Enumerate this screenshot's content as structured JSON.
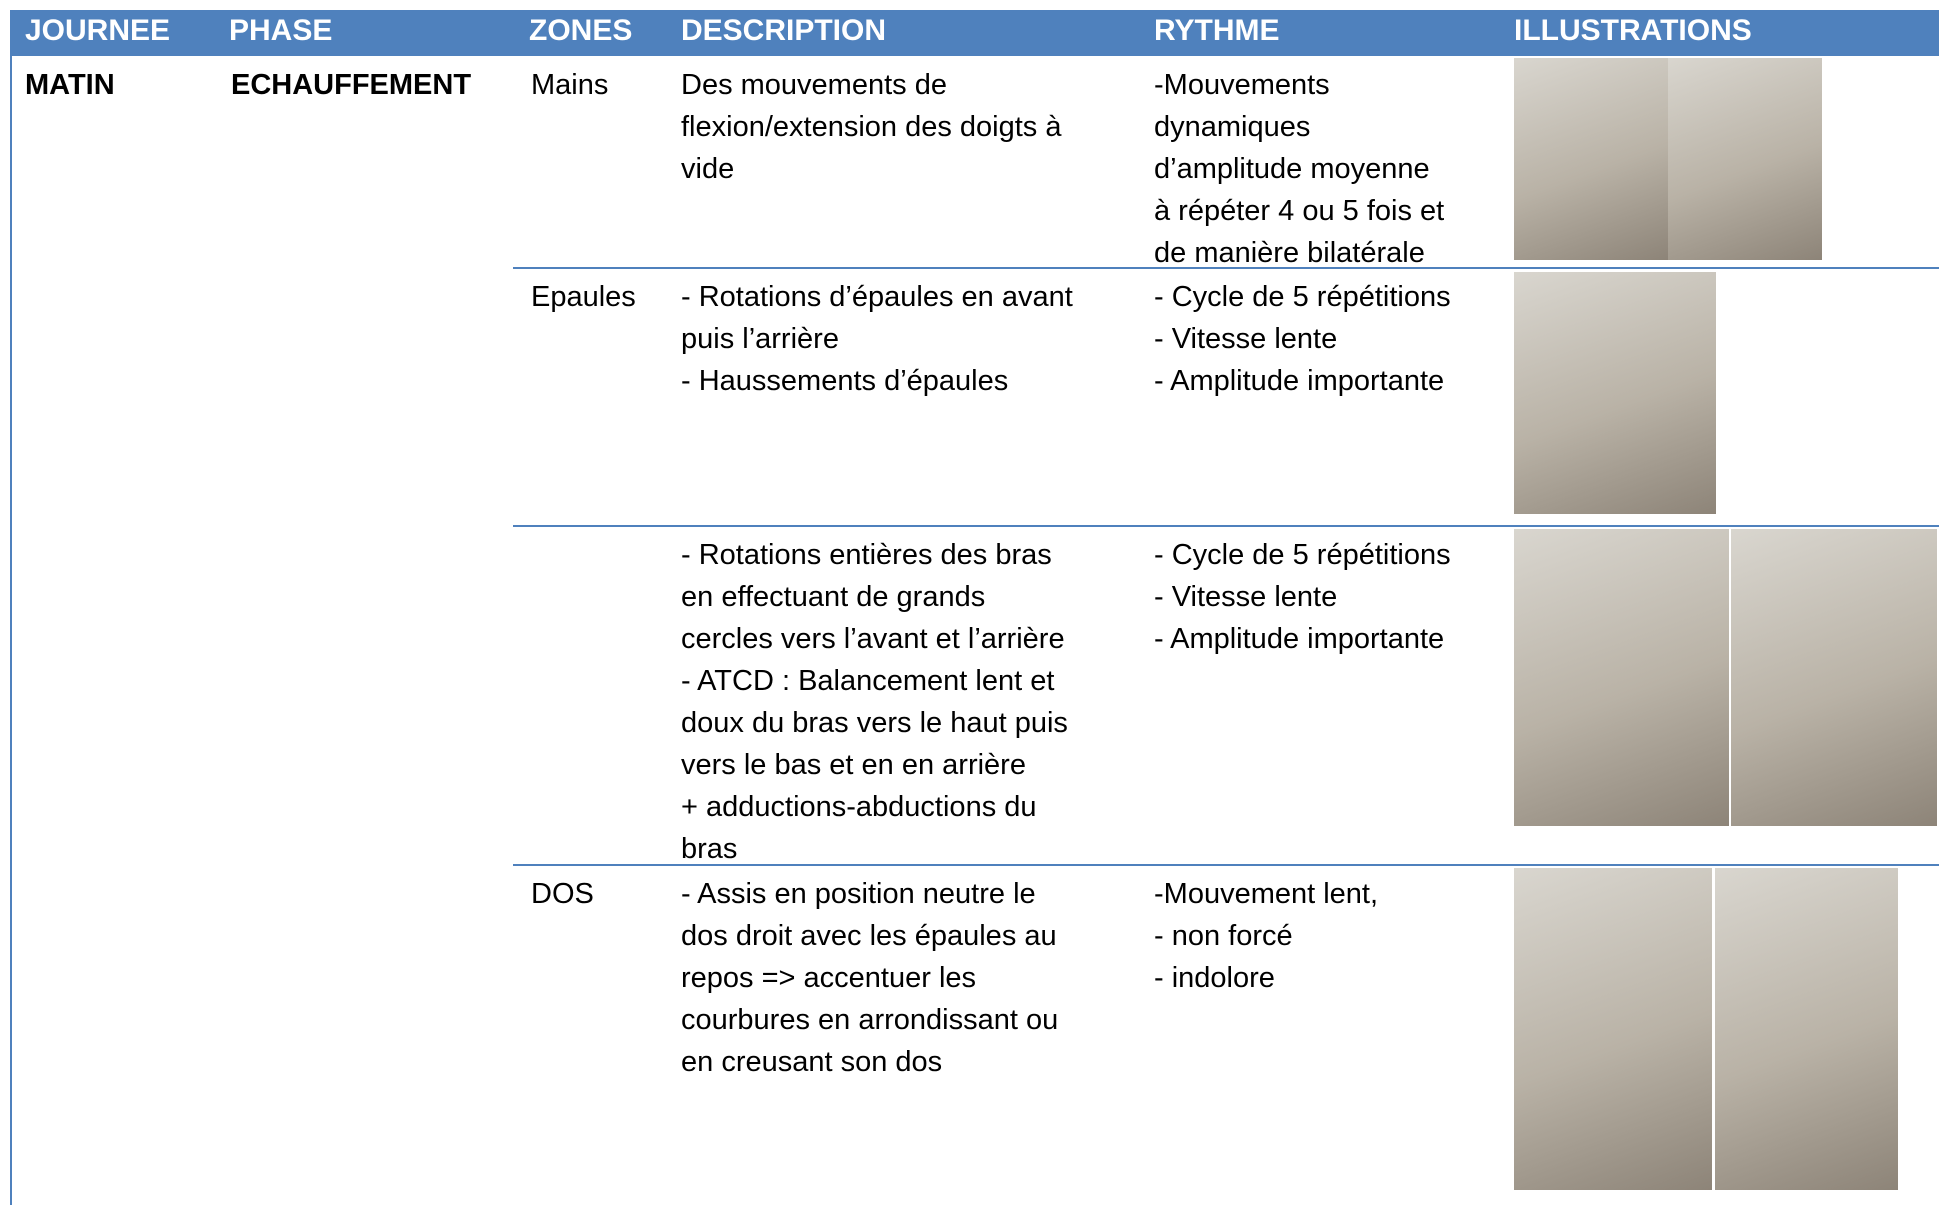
{
  "table": {
    "header": [
      "JOURNEE",
      "PHASE",
      "ZONES",
      "DESCRIPTION",
      "RYTHME",
      "ILLUSTRATIONS"
    ],
    "journee": "MATIN",
    "phase": "ECHAUFFEMENT",
    "rows": [
      {
        "zone": "Mains",
        "description": [
          "Des mouvements de",
          "flexion/extension  des doigts à",
          "vide"
        ],
        "rythme": [
          "-Mouvements",
          "dynamiques",
          "d’amplitude moyenne",
          "à répéter 4 ou 5 fois et",
          "de manière bilatérale"
        ]
      },
      {
        "zone": "Epaules",
        "description": [
          "- Rotations d’épaules en avant",
          "puis l’arrière",
          "- Haussements d’épaules"
        ],
        "rythme": [
          "- Cycle de 5 répétitions",
          "- Vitesse lente",
          "- Amplitude importante"
        ]
      },
      {
        "zone": null,
        "description": [
          "- Rotations entières des bras",
          "en effectuant de grands",
          "cercles vers l’avant et l’arrière",
          "- ATCD : Balancement lent et",
          "doux du bras vers le haut puis",
          "vers le bas et en en arrière",
          "+ adductions-abductions du",
          "bras"
        ],
        "rythme": [
          "- Cycle de 5 répétitions",
          "- Vitesse lente",
          "- Amplitude importante"
        ]
      },
      {
        "zone": "DOS",
        "description": [
          "- Assis en position neutre le",
          "dos droit avec les épaules au",
          "repos => accentuer les",
          "courbures en arrondissant ou",
          "en creusant son dos"
        ],
        "rythme": [
          "-Mouvement lent,",
          "- non forcé",
          "- indolore"
        ]
      }
    ]
  }
}
